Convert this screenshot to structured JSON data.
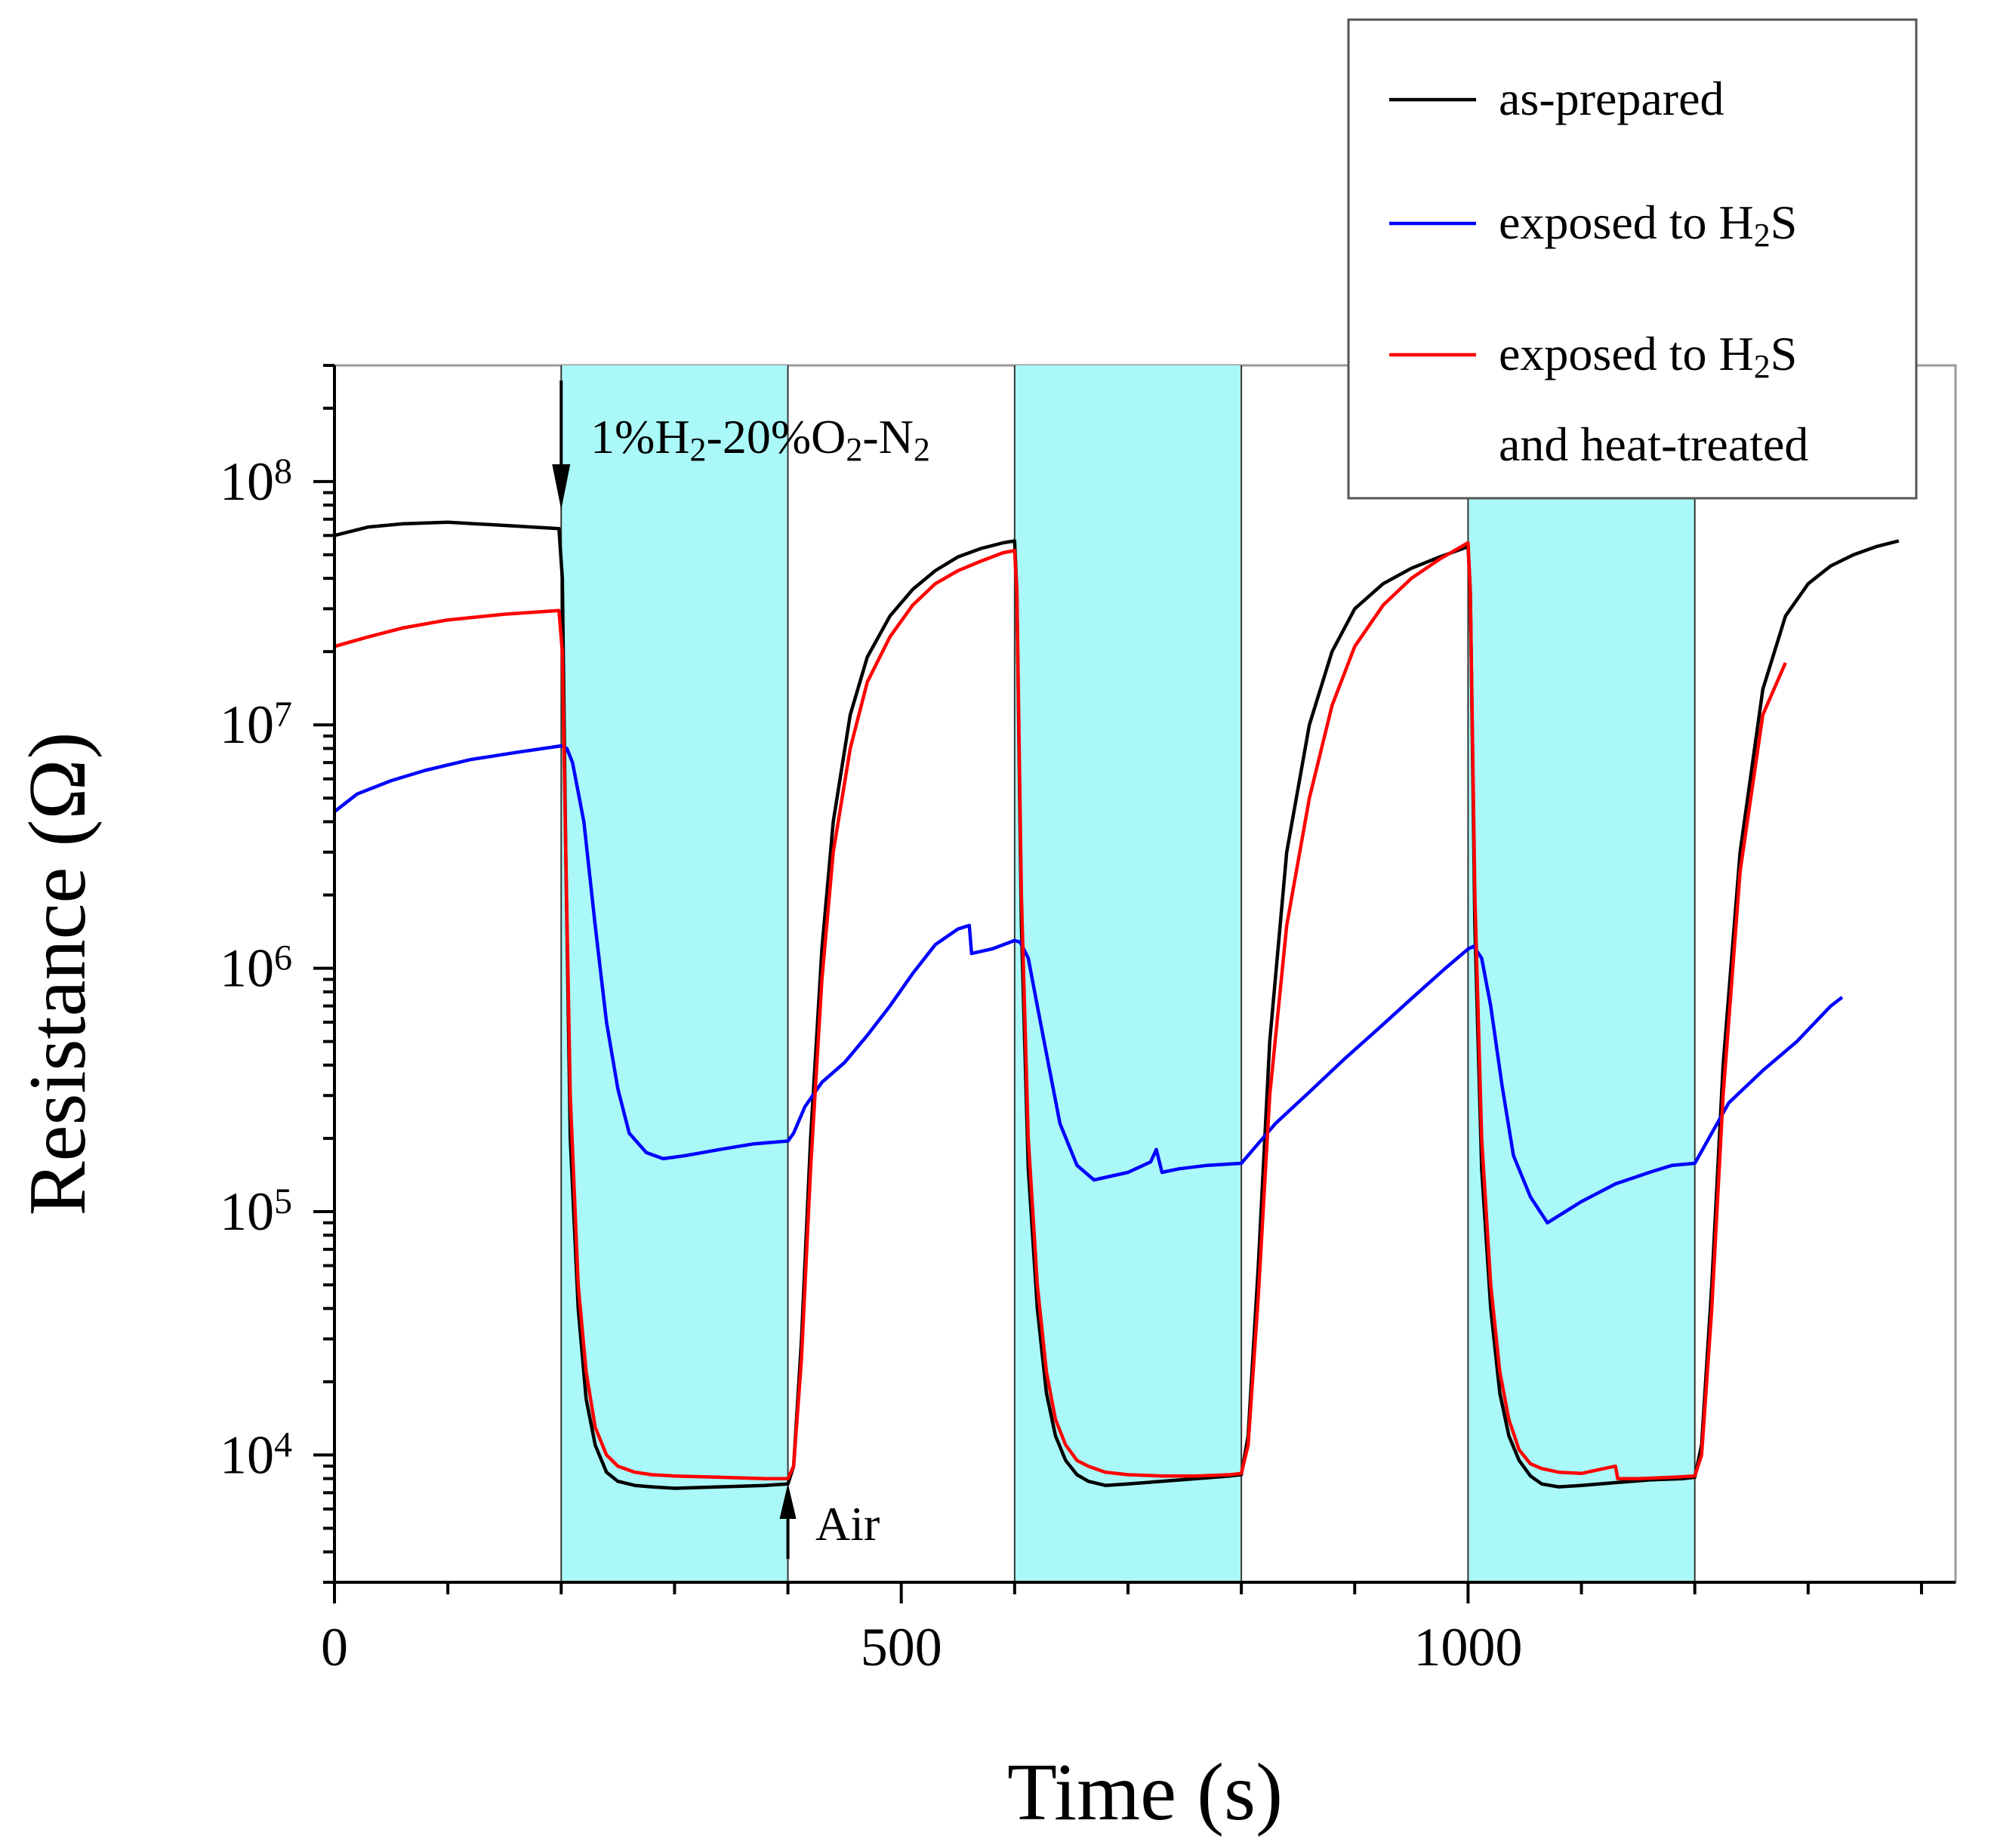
{
  "chart_data": {
    "type": "line",
    "title": "",
    "xlabel": "Time (s)",
    "ylabel": "Resistance (Ω)",
    "xlim": [
      0,
      1430
    ],
    "ylim": [
      3000,
      300000000
    ],
    "yscale": "log",
    "x_ticks": [
      0,
      500,
      1000
    ],
    "x_tick_labels": [
      "0",
      "500",
      "1000"
    ],
    "y_ticks": [
      10000,
      100000,
      1000000,
      10000000,
      100000000
    ],
    "y_tick_labels": [
      {
        "base": "10",
        "exp": "4"
      },
      {
        "base": "10",
        "exp": "5"
      },
      {
        "base": "10",
        "exp": "6"
      },
      {
        "base": "10",
        "exp": "7"
      },
      {
        "base": "10",
        "exp": "8"
      }
    ],
    "shaded_intervals": [
      [
        200,
        400
      ],
      [
        600,
        800
      ],
      [
        1000,
        1200
      ]
    ],
    "shade_color": "#aaf8f8",
    "annotations": {
      "gas": {
        "parts": [
          {
            "t": "1%H",
            "sub": false
          },
          {
            "t": "2",
            "sub": true
          },
          {
            "t": "-20%O",
            "sub": false
          },
          {
            "t": "2",
            "sub": true
          },
          {
            "t": "-N",
            "sub": false
          },
          {
            "t": "2",
            "sub": true
          }
        ],
        "arrow_at_x": 200
      },
      "air": {
        "text": "Air",
        "arrow_at_x": 400
      }
    },
    "legend": {
      "position": "top-right",
      "entries": [
        {
          "series": 0,
          "parts": [
            {
              "t": "as-prepared",
              "sub": false
            }
          ]
        },
        {
          "series": 1,
          "parts": [
            {
              "t": "exposed to H",
              "sub": false
            },
            {
              "t": "2",
              "sub": true
            },
            {
              "t": "S",
              "sub": false
            }
          ]
        },
        {
          "series": 2,
          "parts": [
            {
              "t": "exposed to H",
              "sub": false
            },
            {
              "t": "2",
              "sub": true
            },
            {
              "t": "S",
              "sub": false
            }
          ],
          "line2": "and heat-treated"
        }
      ]
    },
    "series": [
      {
        "name": "as-prepared",
        "color": "#000000",
        "x": [
          0,
          30,
          60,
          100,
          150,
          198,
          201,
          204,
          208,
          215,
          222,
          230,
          240,
          250,
          265,
          280,
          300,
          340,
          380,
          400,
          405,
          412,
          420,
          430,
          440,
          455,
          470,
          490,
          510,
          530,
          550,
          570,
          590,
          600,
          602,
          606,
          612,
          620,
          628,
          636,
          645,
          655,
          665,
          680,
          700,
          730,
          760,
          790,
          800,
          806,
          815,
          825,
          840,
          860,
          880,
          900,
          925,
          950,
          975,
          1000,
          1002,
          1006,
          1012,
          1020,
          1028,
          1036,
          1045,
          1055,
          1065,
          1080,
          1100,
          1130,
          1160,
          1190,
          1200,
          1206,
          1215,
          1225,
          1240,
          1260,
          1280,
          1300,
          1320,
          1340,
          1360,
          1380
        ],
        "y": [
          60000000,
          65000000,
          67000000,
          68000000,
          66000000,
          64000000,
          40000000,
          3000000,
          200000,
          40000,
          17000,
          11000,
          8500,
          7800,
          7500,
          7400,
          7300,
          7400,
          7500,
          7600,
          9000,
          30000,
          200000,
          1200000,
          4000000,
          11000000,
          19000000,
          28000000,
          36000000,
          43000000,
          49000000,
          53000000,
          56000000,
          57000000,
          35000000,
          1500000,
          150000,
          40000,
          18000,
          12000,
          9500,
          8300,
          7800,
          7500,
          7600,
          7800,
          8000,
          8200,
          8300,
          12000,
          60000,
          500000,
          3000000,
          10000000,
          20000000,
          30000000,
          38000000,
          44000000,
          49000000,
          54000000,
          35000000,
          1500000,
          150000,
          40000,
          18000,
          12000,
          9500,
          8200,
          7600,
          7400,
          7500,
          7700,
          7900,
          8000,
          8100,
          11000,
          50000,
          400000,
          3000000,
          14000000,
          28000000,
          38000000,
          45000000,
          50000000,
          54000000,
          57000000
        ]
      },
      {
        "name": "exposed to H2S",
        "color": "#0000ff",
        "x": [
          0,
          20,
          50,
          80,
          120,
          160,
          200,
          205,
          210,
          220,
          230,
          240,
          250,
          260,
          275,
          290,
          310,
          340,
          370,
          400,
          405,
          415,
          430,
          450,
          470,
          490,
          510,
          530,
          550,
          560,
          562,
          580,
          600,
          605,
          612,
          620,
          630,
          640,
          655,
          670,
          700,
          720,
          725,
          730,
          745,
          770,
          800,
          830,
          860,
          890,
          920,
          950,
          980,
          1000,
          1005,
          1012,
          1020,
          1030,
          1040,
          1055,
          1070,
          1100,
          1130,
          1160,
          1180,
          1200,
          1230,
          1260,
          1290,
          1320,
          1330
        ],
        "y": [
          4400000,
          5200000,
          5900000,
          6500000,
          7200000,
          7700000,
          8200000,
          8000000,
          7000000,
          4000000,
          1500000,
          600000,
          320000,
          210000,
          175000,
          165000,
          170000,
          180000,
          190000,
          195000,
          210000,
          270000,
          340000,
          410000,
          530000,
          700000,
          950000,
          1250000,
          1450000,
          1500000,
          1150000,
          1200000,
          1300000,
          1280000,
          1100000,
          700000,
          400000,
          230000,
          155000,
          135000,
          145000,
          160000,
          180000,
          145000,
          150000,
          155000,
          158000,
          230000,
          310000,
          420000,
          560000,
          750000,
          1000000,
          1200000,
          1230000,
          1100000,
          700000,
          330000,
          170000,
          115000,
          90000,
          110000,
          130000,
          145000,
          155000,
          158000,
          280000,
          380000,
          500000,
          700000,
          760000
        ]
      },
      {
        "name": "exposed to H2S and heat-treated",
        "color": "#ff0000",
        "x": [
          0,
          30,
          60,
          100,
          150,
          198,
          201,
          204,
          208,
          215,
          222,
          230,
          240,
          250,
          265,
          280,
          300,
          340,
          380,
          400,
          405,
          412,
          420,
          430,
          440,
          455,
          470,
          490,
          510,
          530,
          550,
          570,
          590,
          600,
          602,
          606,
          612,
          620,
          628,
          636,
          645,
          655,
          665,
          680,
          700,
          730,
          760,
          790,
          800,
          806,
          815,
          825,
          840,
          860,
          880,
          900,
          925,
          950,
          975,
          1000,
          1002,
          1006,
          1012,
          1020,
          1028,
          1036,
          1045,
          1055,
          1065,
          1080,
          1100,
          1120,
          1130,
          1132,
          1150,
          1180,
          1200,
          1206,
          1215,
          1225,
          1240,
          1260,
          1280
        ],
        "y": [
          21000000,
          23000000,
          25000000,
          27000000,
          28500000,
          29500000,
          20000000,
          3000000,
          300000,
          50000,
          22000,
          13000,
          10000,
          9000,
          8500,
          8300,
          8200,
          8100,
          8000,
          8000,
          9000,
          25000,
          150000,
          900000,
          3000000,
          8000000,
          15000000,
          23000000,
          31000000,
          38000000,
          43000000,
          47000000,
          51000000,
          52000000,
          35000000,
          2000000,
          200000,
          50000,
          22000,
          14000,
          11000,
          9500,
          9000,
          8500,
          8300,
          8200,
          8200,
          8300,
          8400,
          11000,
          45000,
          300000,
          1500000,
          5000000,
          12000000,
          21000000,
          31000000,
          40000000,
          48000000,
          56000000,
          35000000,
          2000000,
          200000,
          50000,
          22000,
          14000,
          10500,
          9200,
          8800,
          8500,
          8400,
          8800,
          9000,
          8000,
          8000,
          8100,
          8200,
          10000,
          40000,
          300000,
          2500000,
          11000000,
          18000000
        ]
      }
    ]
  }
}
